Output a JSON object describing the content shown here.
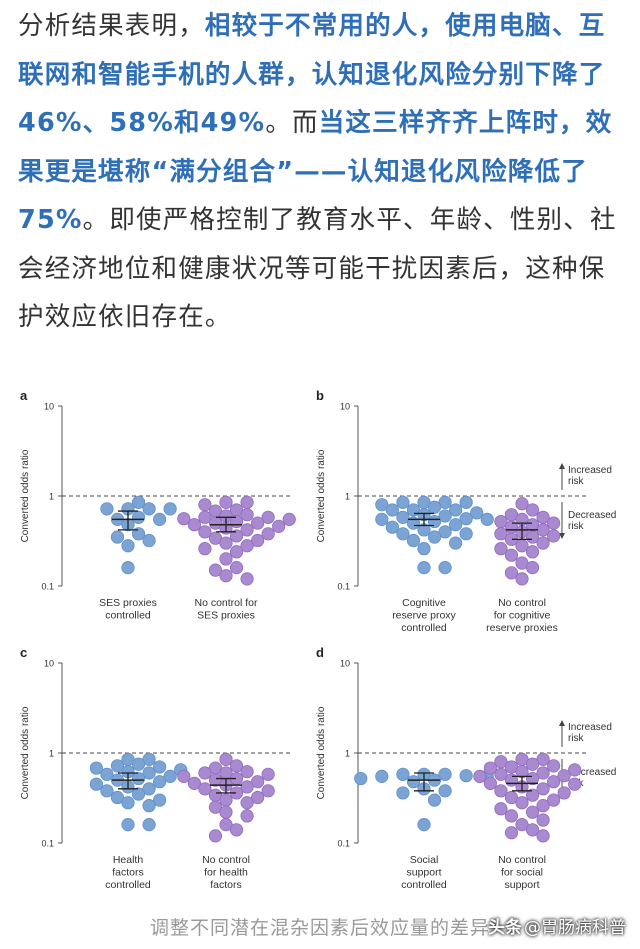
{
  "article": {
    "segments": [
      {
        "text": "分析结果表明，",
        "hl": false
      },
      {
        "text": "相较于不常用的人，使用电脑、互联网和智能手机的人群，认知退化风险分别下降了46%、58%和49%",
        "hl": true
      },
      {
        "text": "。而",
        "hl": false
      },
      {
        "text": "当这三样齐齐上阵时，效果更是堪称“满分组合”——认知退化风险降低了75%",
        "hl": true
      },
      {
        "text": "。即使严格控制了教育水平、年龄、性别、社会经济地位和健康状况等可能干扰因素后，这种保护效应依旧存在。",
        "hl": false
      }
    ]
  },
  "caption": "调整不同潜在混杂因素后效应量的差异",
  "watermark": {
    "prefix": "头条",
    "text": "@胃肠病科普"
  },
  "colors": {
    "blue": "#7ba4d4",
    "purple": "#a98ad0",
    "text_highlight": "#2f6fb8"
  },
  "chart_data": [
    {
      "type": "scatter",
      "panel": "a",
      "ylabel": "Converted odds ratio",
      "y_scale": "log",
      "ylim": [
        0.1,
        10
      ],
      "yticks": [
        "10",
        "1",
        "0.1"
      ],
      "reference_line": 1,
      "groups": [
        {
          "label": [
            "SES proxies",
            "controlled"
          ],
          "color": "blue",
          "mean": 0.55,
          "ci": [
            0.42,
            0.68
          ],
          "values": [
            0.72,
            0.85,
            0.72,
            0.72,
            0.72,
            0.58,
            0.55,
            0.48,
            0.55,
            0.38,
            0.35,
            0.32,
            0.28,
            0.16
          ]
        },
        {
          "label": [
            "No control for",
            "SES proxies"
          ],
          "color": "purple",
          "mean": 0.48,
          "ci": [
            0.4,
            0.58
          ],
          "values": [
            0.85,
            0.85,
            0.8,
            0.7,
            0.68,
            0.62,
            0.6,
            0.58,
            0.58,
            0.56,
            0.55,
            0.52,
            0.5,
            0.5,
            0.48,
            0.46,
            0.44,
            0.42,
            0.4,
            0.38,
            0.36,
            0.34,
            0.32,
            0.3,
            0.28,
            0.26,
            0.24,
            0.2,
            0.16,
            0.15,
            0.13,
            0.12
          ]
        }
      ]
    },
    {
      "type": "scatter",
      "panel": "b",
      "ylabel": "Converted odds ratio",
      "y_scale": "log",
      "ylim": [
        0.1,
        10
      ],
      "yticks": [
        "10",
        "1",
        "0.1"
      ],
      "reference_line": 1,
      "annotations": [
        "Increased risk",
        "Decreased risk"
      ],
      "groups": [
        {
          "label": [
            "Cognitive",
            "reserve proxy",
            "controlled"
          ],
          "color": "blue",
          "mean": 0.55,
          "ci": [
            0.47,
            0.64
          ],
          "values": [
            0.85,
            0.85,
            0.85,
            0.85,
            0.8,
            0.75,
            0.7,
            0.7,
            0.7,
            0.65,
            0.62,
            0.6,
            0.58,
            0.56,
            0.55,
            0.55,
            0.52,
            0.5,
            0.48,
            0.45,
            0.42,
            0.4,
            0.38,
            0.38,
            0.35,
            0.32,
            0.3,
            0.26,
            0.16,
            0.16
          ]
        },
        {
          "label": [
            "No control",
            "for cognitive",
            "reserve proxies"
          ],
          "color": "purple",
          "mean": 0.42,
          "ci": [
            0.33,
            0.5
          ],
          "values": [
            0.82,
            0.7,
            0.62,
            0.58,
            0.55,
            0.52,
            0.5,
            0.48,
            0.45,
            0.42,
            0.4,
            0.38,
            0.36,
            0.35,
            0.33,
            0.3,
            0.28,
            0.26,
            0.24,
            0.22,
            0.18,
            0.16,
            0.14,
            0.12
          ]
        }
      ]
    },
    {
      "type": "scatter",
      "panel": "c",
      "ylabel": "Converted odds ratio",
      "y_scale": "log",
      "ylim": [
        0.1,
        10
      ],
      "yticks": [
        "10",
        "1",
        "0.1"
      ],
      "reference_line": 1,
      "groups": [
        {
          "label": [
            "Health",
            "factors",
            "controlled"
          ],
          "color": "blue",
          "mean": 0.5,
          "ci": [
            0.4,
            0.6
          ],
          "values": [
            0.85,
            0.85,
            0.75,
            0.72,
            0.7,
            0.68,
            0.65,
            0.62,
            0.6,
            0.58,
            0.55,
            0.52,
            0.5,
            0.48,
            0.45,
            0.42,
            0.4,
            0.38,
            0.35,
            0.32,
            0.3,
            0.28,
            0.26,
            0.16,
            0.16
          ]
        },
        {
          "label": [
            "No control",
            "for health",
            "factors"
          ],
          "color": "purple",
          "mean": 0.44,
          "ci": [
            0.36,
            0.52
          ],
          "values": [
            0.85,
            0.72,
            0.68,
            0.62,
            0.6,
            0.6,
            0.58,
            0.55,
            0.52,
            0.5,
            0.48,
            0.46,
            0.44,
            0.42,
            0.4,
            0.38,
            0.36,
            0.34,
            0.32,
            0.3,
            0.28,
            0.25,
            0.22,
            0.2,
            0.16,
            0.14,
            0.12
          ]
        }
      ]
    },
    {
      "type": "scatter",
      "panel": "d",
      "ylabel": "Converted odds ratio",
      "y_scale": "log",
      "ylim": [
        0.1,
        10
      ],
      "yticks": [
        "10",
        "1",
        "0.1"
      ],
      "reference_line": 1,
      "annotations": [
        "Increased risk",
        "Decreased risk"
      ],
      "groups": [
        {
          "label": [
            "Social",
            "support",
            "controlled"
          ],
          "color": "blue",
          "mean": 0.5,
          "ci": [
            0.38,
            0.6
          ],
          "values": [
            0.58,
            0.58,
            0.58,
            0.56,
            0.55,
            0.55,
            0.52,
            0.5,
            0.48,
            0.4,
            0.38,
            0.36,
            0.3,
            0.16
          ]
        },
        {
          "label": [
            "No control",
            "for social",
            "support"
          ],
          "color": "purple",
          "mean": 0.46,
          "ci": [
            0.38,
            0.55
          ],
          "values": [
            0.85,
            0.85,
            0.8,
            0.75,
            0.72,
            0.7,
            0.68,
            0.65,
            0.62,
            0.6,
            0.58,
            0.56,
            0.55,
            0.52,
            0.5,
            0.48,
            0.46,
            0.45,
            0.42,
            0.4,
            0.38,
            0.36,
            0.34,
            0.32,
            0.3,
            0.28,
            0.26,
            0.24,
            0.22,
            0.2,
            0.18,
            0.16,
            0.14,
            0.13,
            0.12
          ]
        }
      ]
    }
  ]
}
